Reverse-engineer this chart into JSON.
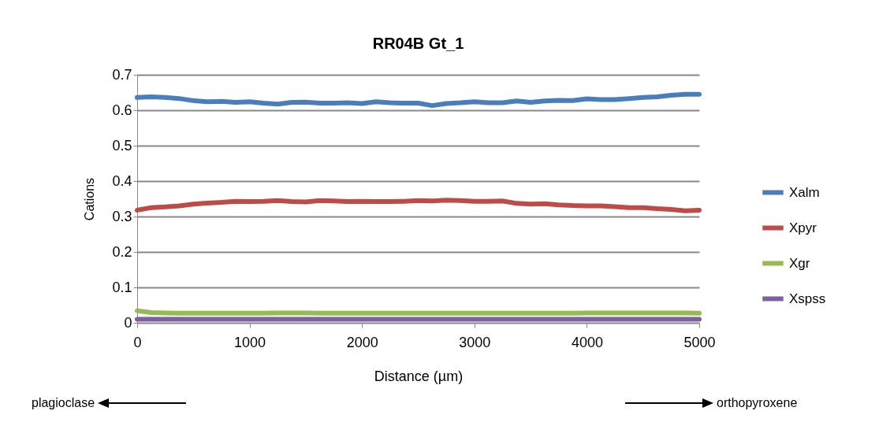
{
  "chart_data": {
    "type": "line",
    "title": "RR04B Gt_1",
    "xlabel": "Distance (µm)",
    "ylabel": "Cations",
    "x": [
      0,
      125,
      250,
      375,
      500,
      625,
      750,
      875,
      1000,
      1125,
      1250,
      1375,
      1500,
      1625,
      1750,
      1875,
      2000,
      2125,
      2250,
      2375,
      2500,
      2625,
      2750,
      2875,
      3000,
      3125,
      3250,
      3375,
      3500,
      3625,
      3750,
      3875,
      4000,
      4125,
      4250,
      4375,
      4500,
      4625,
      4750,
      4875,
      5000
    ],
    "series": [
      {
        "name": "Xalm",
        "color": "#4a7ebb",
        "values": [
          0.636,
          0.638,
          0.636,
          0.633,
          0.627,
          0.624,
          0.625,
          0.622,
          0.624,
          0.62,
          0.617,
          0.622,
          0.623,
          0.62,
          0.62,
          0.621,
          0.619,
          0.624,
          0.621,
          0.62,
          0.62,
          0.613,
          0.619,
          0.621,
          0.624,
          0.621,
          0.621,
          0.626,
          0.622,
          0.626,
          0.628,
          0.627,
          0.632,
          0.63,
          0.63,
          0.633,
          0.636,
          0.638,
          0.642,
          0.645,
          0.645
        ]
      },
      {
        "name": "Xpyr",
        "color": "#be4b48",
        "values": [
          0.318,
          0.325,
          0.327,
          0.33,
          0.335,
          0.338,
          0.34,
          0.343,
          0.342,
          0.343,
          0.345,
          0.342,
          0.341,
          0.345,
          0.344,
          0.342,
          0.343,
          0.342,
          0.342,
          0.343,
          0.345,
          0.344,
          0.346,
          0.345,
          0.343,
          0.343,
          0.344,
          0.337,
          0.335,
          0.336,
          0.333,
          0.331,
          0.33,
          0.33,
          0.328,
          0.325,
          0.325,
          0.322,
          0.32,
          0.316,
          0.318
        ]
      },
      {
        "name": "Xgr",
        "color": "#98b954",
        "values": [
          0.034,
          0.029,
          0.028,
          0.027,
          0.027,
          0.027,
          0.027,
          0.027,
          0.027,
          0.027,
          0.028,
          0.028,
          0.028,
          0.027,
          0.027,
          0.027,
          0.027,
          0.027,
          0.027,
          0.027,
          0.027,
          0.027,
          0.027,
          0.027,
          0.027,
          0.027,
          0.027,
          0.027,
          0.027,
          0.027,
          0.027,
          0.027,
          0.028,
          0.028,
          0.028,
          0.028,
          0.028,
          0.028,
          0.028,
          0.028,
          0.027
        ]
      },
      {
        "name": "Xspss",
        "color": "#7d60a0",
        "values": [
          0.01,
          0.01,
          0.01,
          0.01,
          0.01,
          0.01,
          0.01,
          0.01,
          0.01,
          0.01,
          0.01,
          0.01,
          0.01,
          0.01,
          0.01,
          0.01,
          0.01,
          0.01,
          0.01,
          0.01,
          0.01,
          0.01,
          0.01,
          0.01,
          0.01,
          0.01,
          0.01,
          0.01,
          0.01,
          0.01,
          0.01,
          0.01,
          0.01,
          0.01,
          0.01,
          0.01,
          0.01,
          0.01,
          0.01,
          0.01,
          0.01
        ]
      }
    ],
    "xlim": [
      0,
      5000
    ],
    "xticks": [
      0,
      1000,
      2000,
      3000,
      4000,
      5000
    ],
    "ylim": [
      0,
      0.7
    ],
    "yticks": [
      0,
      0.1,
      0.2,
      0.3,
      0.4,
      0.5,
      0.6,
      0.7
    ],
    "grid": "y",
    "legend": "right",
    "marker": "none",
    "line_style": "solid",
    "annotations": [
      "plagioclase",
      "orthopyroxene"
    ]
  }
}
